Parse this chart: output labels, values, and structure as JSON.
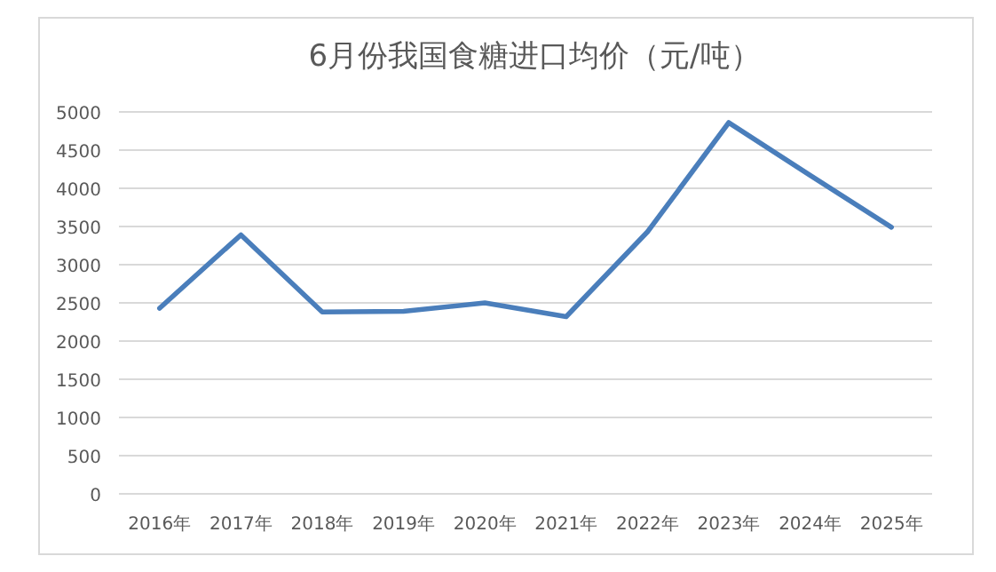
{
  "chart_data": {
    "type": "line",
    "title": "6月份我国食糖进口均价（元/吨）",
    "categories": [
      "2016年",
      "2017年",
      "2018年",
      "2019年",
      "2020年",
      "2021年",
      "2022年",
      "2023年",
      "2024年",
      "2025年"
    ],
    "series": [
      {
        "color": "#4a7ebb",
        "values": [
          2430,
          3390,
          2380,
          2390,
          2500,
          2320,
          3430,
          4860,
          4170,
          3490
        ]
      }
    ],
    "ylim": [
      0,
      5000
    ],
    "yticks": [
      0,
      500,
      1000,
      1500,
      2000,
      2500,
      3000,
      3500,
      4000,
      4500,
      5000
    ],
    "grid": "y",
    "marker": "none",
    "line_style": "solid"
  }
}
